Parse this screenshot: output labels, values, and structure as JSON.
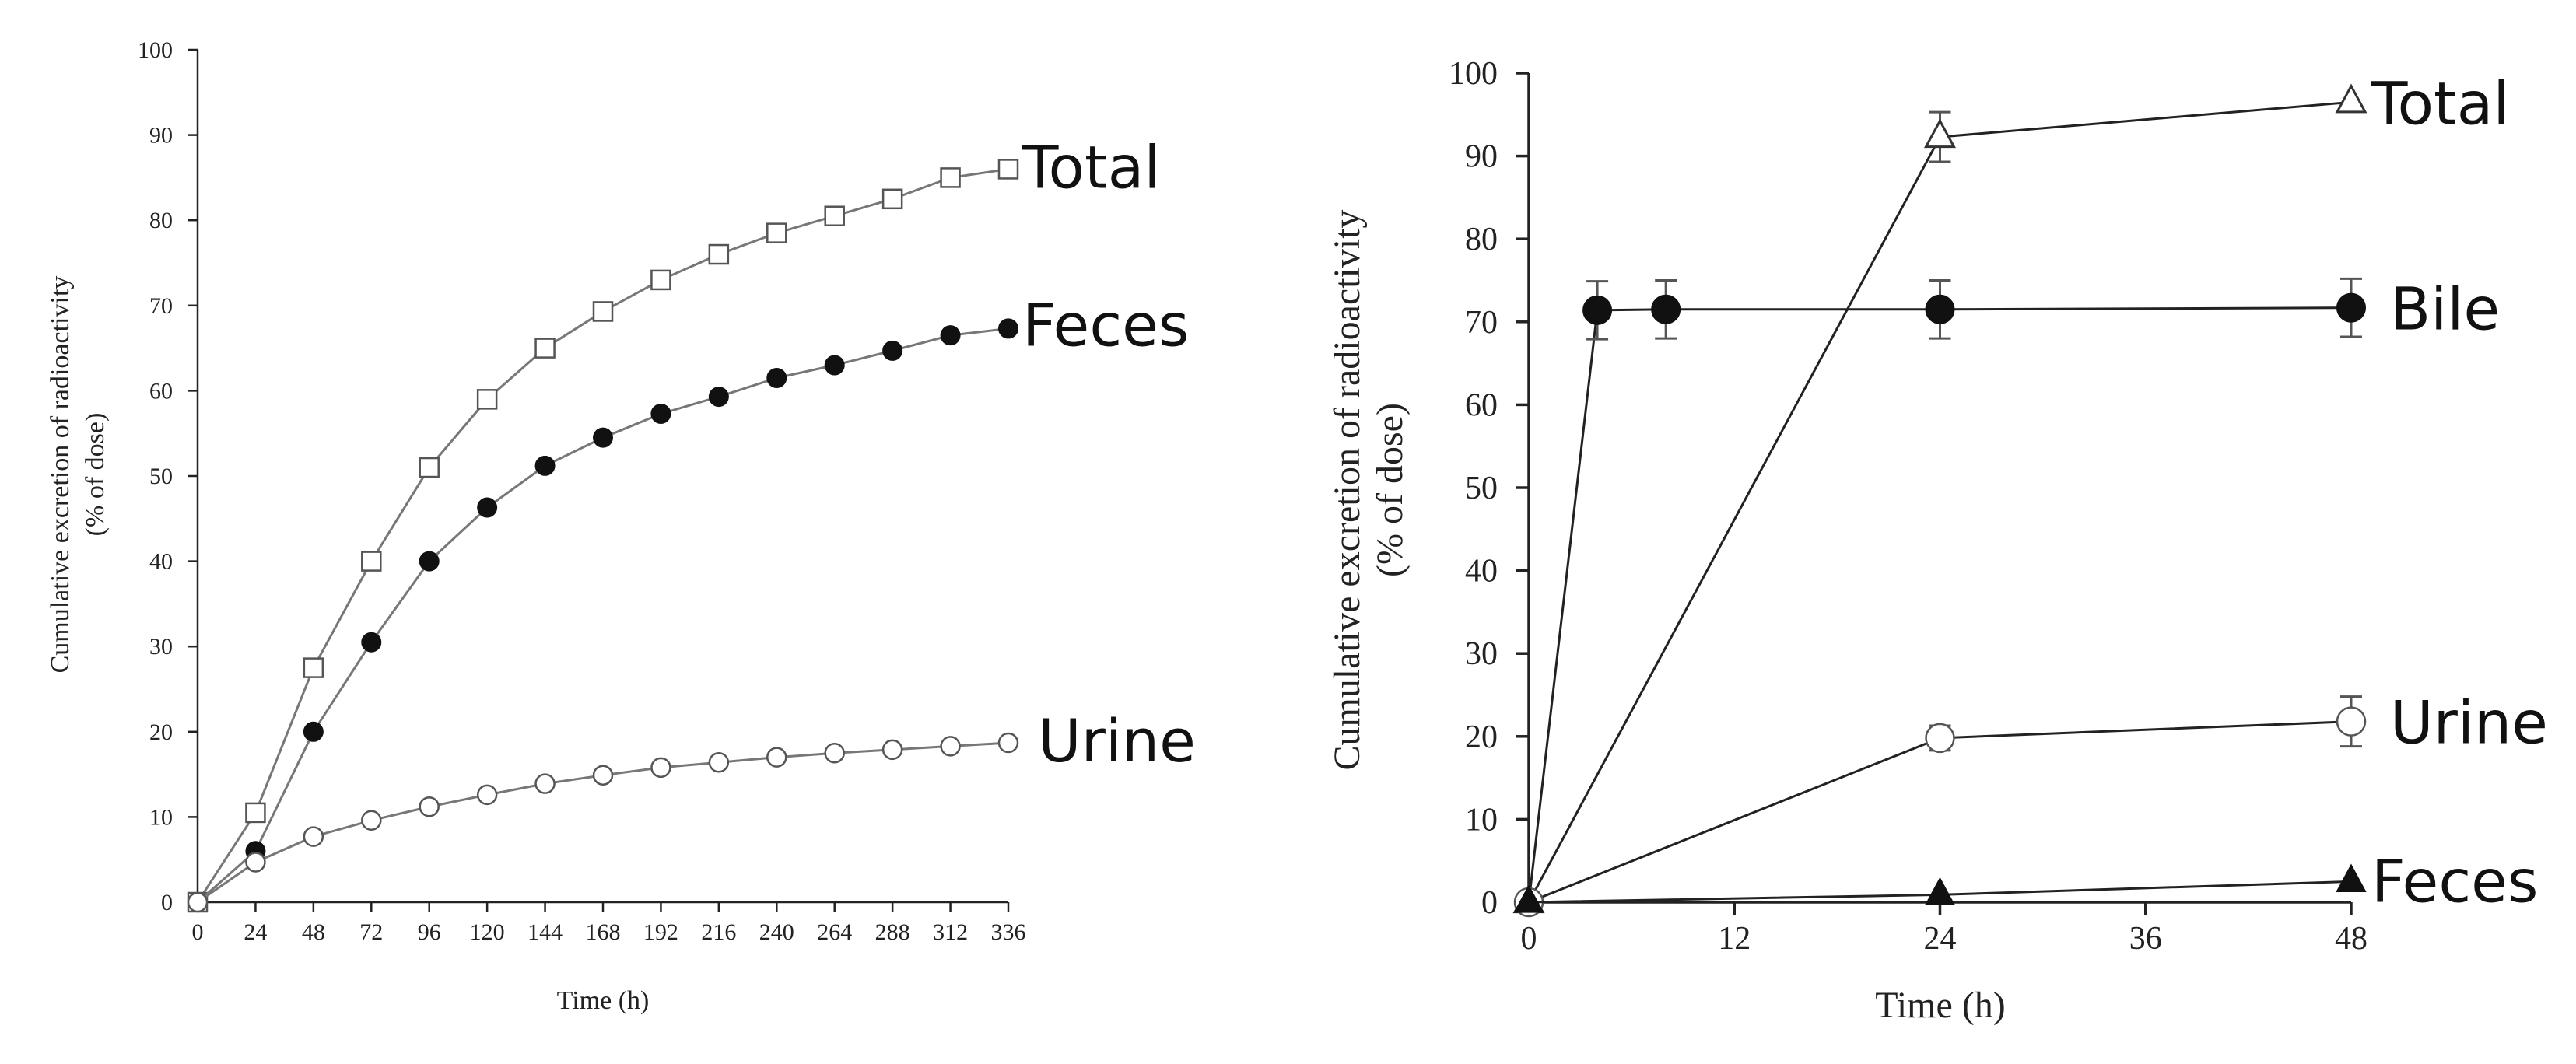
{
  "chart_data": [
    {
      "type": "line",
      "title": "",
      "xlabel": "Time (h)",
      "ylabel": "Cumulative excretion of radioactivity",
      "ylabel_line2": "(% of dose)",
      "xlim": [
        0,
        336
      ],
      "ylim": [
        0,
        100
      ],
      "x_ticks": [
        "0",
        "24",
        "48",
        "72",
        "96",
        "120",
        "144",
        "168",
        "192",
        "216",
        "240",
        "264",
        "288",
        "312",
        "336"
      ],
      "y_ticks": [
        "0",
        "10",
        "20",
        "30",
        "40",
        "50",
        "60",
        "70",
        "80",
        "90",
        "100"
      ],
      "grid": false,
      "legend": "none (series labelled at line ends)",
      "x": [
        0,
        24,
        48,
        72,
        96,
        120,
        144,
        168,
        192,
        216,
        240,
        264,
        288,
        312,
        336
      ],
      "series": [
        {
          "name": "Total",
          "marker": "open-square",
          "values": [
            0,
            10.5,
            27.5,
            40,
            51,
            59,
            65,
            69.3,
            73,
            76,
            78.5,
            80.5,
            82.5,
            85,
            86
          ]
        },
        {
          "name": "Feces",
          "marker": "filled-circle",
          "values": [
            0,
            6,
            20,
            30.5,
            40,
            46.3,
            51.2,
            54.5,
            57.3,
            59.3,
            61.5,
            63,
            64.7,
            66.5,
            67.3
          ]
        },
        {
          "name": "Urine",
          "marker": "open-circle",
          "values": [
            0,
            4.7,
            7.7,
            9.6,
            11.2,
            12.6,
            13.9,
            14.9,
            15.8,
            16.4,
            17,
            17.5,
            17.9,
            18.3,
            18.7
          ]
        }
      ]
    },
    {
      "type": "line",
      "title": "",
      "xlabel": "Time (h)",
      "ylabel": "Cumulative excretion of radioactivity",
      "ylabel_line2": "(% of dose)",
      "xlim": [
        0,
        48
      ],
      "ylim": [
        0,
        100
      ],
      "x_ticks": [
        "0",
        "12",
        "24",
        "36",
        "48"
      ],
      "y_ticks": [
        "0",
        "10",
        "20",
        "30",
        "40",
        "50",
        "60",
        "70",
        "80",
        "90",
        "100"
      ],
      "grid": false,
      "legend": "none (series labelled at line ends)",
      "series": [
        {
          "name": "Total",
          "marker": "open-triangle",
          "x": [
            0,
            24,
            48
          ],
          "values": [
            0,
            92.3,
            96.5
          ],
          "error": [
            0,
            3,
            0
          ]
        },
        {
          "name": "Bile",
          "marker": "filled-circle",
          "x": [
            0,
            4,
            8,
            24,
            48
          ],
          "values": [
            0,
            71.4,
            71.5,
            71.5,
            71.7
          ],
          "error": [
            0,
            3.5,
            3.5,
            3.5,
            3.5
          ]
        },
        {
          "name": "Urine",
          "marker": "open-circle",
          "x": [
            0,
            24,
            48
          ],
          "values": [
            0,
            19.8,
            21.8
          ],
          "error": [
            0,
            1.5,
            3
          ]
        },
        {
          "name": "Feces",
          "marker": "filled-triangle",
          "x": [
            0,
            24,
            48
          ],
          "values": [
            0,
            0.9,
            2.5
          ],
          "error": [
            0,
            0,
            0
          ]
        }
      ]
    }
  ]
}
